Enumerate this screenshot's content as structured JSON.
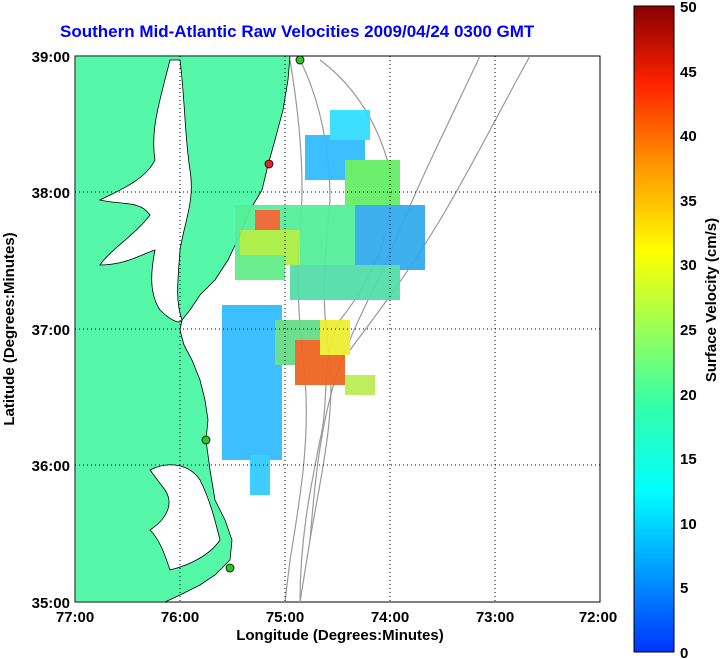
{
  "title": "Southern Mid-Atlantic Raw Velocities 2009/04/24 0300 GMT",
  "xaxis": {
    "label": "Longitude (Degrees:Minutes)",
    "ticks": [
      "77:00",
      "76:00",
      "75:00",
      "74:00",
      "73:00",
      "72:00"
    ]
  },
  "yaxis": {
    "label": "Latitude (Degrees:Minutes)",
    "ticks": [
      "39:00",
      "38:00",
      "37:00",
      "36:00",
      "35:00"
    ]
  },
  "colorbar": {
    "label": "Surface Velocity (cm/s)",
    "ticks": [
      "50",
      "45",
      "40",
      "35",
      "30",
      "25",
      "20",
      "15",
      "10",
      "5",
      "0"
    ]
  },
  "colors": {
    "land": "#55f7a8",
    "title": "#0000ff",
    "station": "#22cc22",
    "station_alt": "#ee2222"
  }
}
